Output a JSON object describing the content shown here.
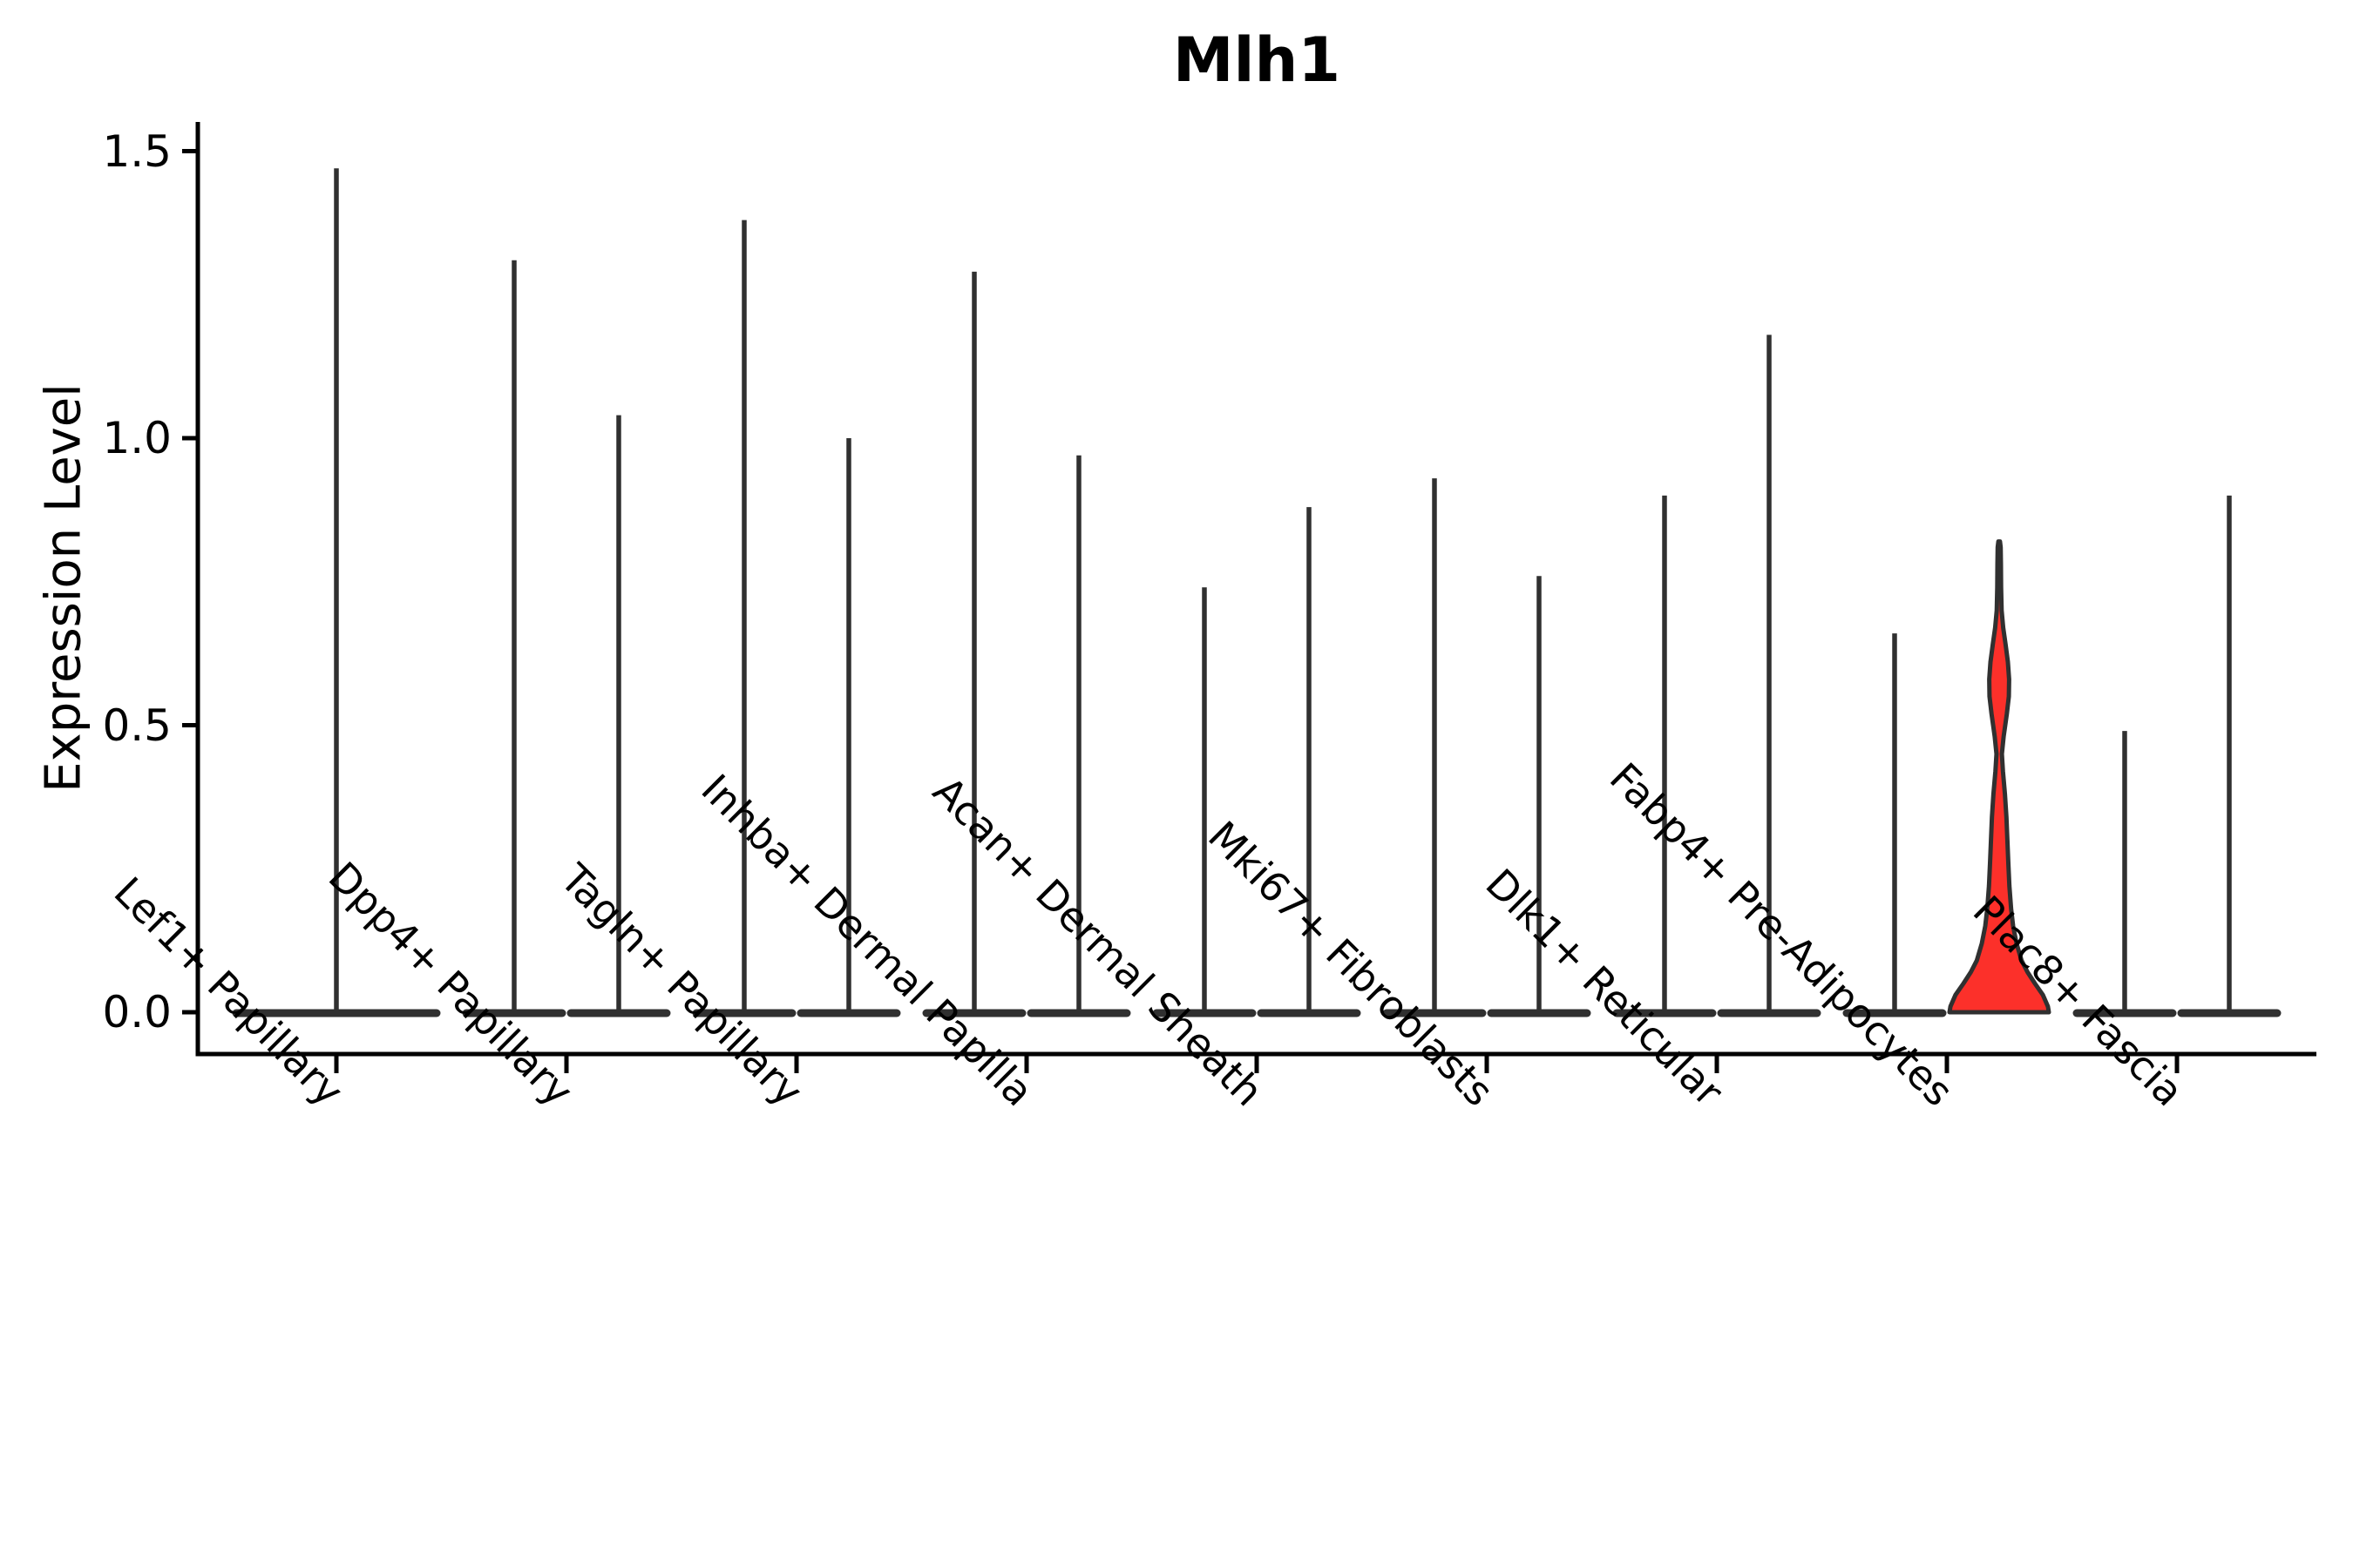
{
  "page": {
    "background": "#ffffff"
  },
  "chart_data": {
    "type": "violin",
    "title": "Mlh1",
    "ylabel": "Expression Level",
    "xlabel": "",
    "grid": false,
    "legend_position": "none",
    "ylim": [
      0,
      1.55
    ],
    "yticks": [
      "0.0",
      "0.5",
      "1.0",
      "1.5"
    ],
    "ytick_values": [
      0.0,
      0.5,
      1.0,
      1.5
    ],
    "categories": [
      "Lef1+ Papillary",
      "Dpp4+ Papillary",
      "Tagln+ Papillary",
      "Inhba+ Dermal Papilla",
      "Acan+ Dermal Sheath",
      "Mki67+ Fibroblasts",
      "Dlk1+ Reticular",
      "Fabp4+ Pre-Adipocytes",
      "Plac8+ Fascia"
    ],
    "description": "Violin plot of Mlh1 expression per fibroblast cluster; most violins collapse to a thin spike at near-zero width. Each category holds up to two dodged violins; max_expression is the value at the top of each spike. Only the second Fabp4+ Pre-Adipocytes violin has visible density and is filled red.",
    "violins": [
      {
        "category_index": 0,
        "category": "Lef1+ Papillary",
        "dodge": 0,
        "max_expression": 1.47,
        "filled": false
      },
      {
        "category_index": 1,
        "category": "Dpp4+ Papillary",
        "dodge": -1,
        "max_expression": 1.31,
        "filled": false
      },
      {
        "category_index": 1,
        "category": "Dpp4+ Papillary",
        "dodge": 1,
        "max_expression": 1.04,
        "filled": false
      },
      {
        "category_index": 2,
        "category": "Tagln+ Papillary",
        "dodge": -1,
        "max_expression": 1.38,
        "filled": false
      },
      {
        "category_index": 2,
        "category": "Tagln+ Papillary",
        "dodge": 1,
        "max_expression": 1.0,
        "filled": false
      },
      {
        "category_index": 3,
        "category": "Inhba+ Dermal Papilla",
        "dodge": -1,
        "max_expression": 1.29,
        "filled": false
      },
      {
        "category_index": 3,
        "category": "Inhba+ Dermal Papilla",
        "dodge": 1,
        "max_expression": 0.97,
        "filled": false
      },
      {
        "category_index": 4,
        "category": "Acan+ Dermal Sheath",
        "dodge": -1,
        "max_expression": 0.74,
        "filled": false
      },
      {
        "category_index": 4,
        "category": "Acan+ Dermal Sheath",
        "dodge": 1,
        "max_expression": 0.88,
        "filled": false
      },
      {
        "category_index": 5,
        "category": "Mki67+ Fibroblasts",
        "dodge": -1,
        "max_expression": 0.93,
        "filled": false
      },
      {
        "category_index": 5,
        "category": "Mki67+ Fibroblasts",
        "dodge": 1,
        "max_expression": 0.76,
        "filled": false
      },
      {
        "category_index": 6,
        "category": "Dlk1+ Reticular",
        "dodge": -1,
        "max_expression": 0.9,
        "filled": false
      },
      {
        "category_index": 6,
        "category": "Dlk1+ Reticular",
        "dodge": 1,
        "max_expression": 1.18,
        "filled": false
      },
      {
        "category_index": 7,
        "category": "Fabp4+ Pre-Adipocytes",
        "dodge": -1,
        "max_expression": 0.66,
        "filled": false
      },
      {
        "category_index": 7,
        "category": "Fabp4+ Pre-Adipocytes",
        "dodge": 1,
        "max_expression": 0.82,
        "filled": true
      },
      {
        "category_index": 8,
        "category": "Plac8+ Fascia",
        "dodge": -1,
        "max_expression": 0.49,
        "filled": false
      },
      {
        "category_index": 8,
        "category": "Plac8+ Fascia",
        "dodge": 1,
        "max_expression": 0.9,
        "filled": false
      }
    ],
    "highlight_density_profile": [
      [
        0.0,
        1.0
      ],
      [
        0.01,
        0.98
      ],
      [
        0.03,
        0.88
      ],
      [
        0.05,
        0.72
      ],
      [
        0.07,
        0.57
      ],
      [
        0.09,
        0.45
      ],
      [
        0.12,
        0.35
      ],
      [
        0.15,
        0.28
      ],
      [
        0.18,
        0.24
      ],
      [
        0.22,
        0.205
      ],
      [
        0.26,
        0.185
      ],
      [
        0.3,
        0.165
      ],
      [
        0.34,
        0.145
      ],
      [
        0.38,
        0.115
      ],
      [
        0.42,
        0.075
      ],
      [
        0.45,
        0.055
      ],
      [
        0.48,
        0.09
      ],
      [
        0.52,
        0.155
      ],
      [
        0.55,
        0.195
      ],
      [
        0.58,
        0.2
      ],
      [
        0.61,
        0.175
      ],
      [
        0.64,
        0.13
      ],
      [
        0.67,
        0.08
      ],
      [
        0.7,
        0.05
      ],
      [
        0.74,
        0.038
      ],
      [
        0.78,
        0.035
      ],
      [
        0.81,
        0.03
      ],
      [
        0.82,
        0.0
      ]
    ],
    "colors": {
      "violin_stroke": "#303030",
      "highlight_fill": "#fc302a",
      "axis": "#000000",
      "background": "#ffffff"
    }
  }
}
